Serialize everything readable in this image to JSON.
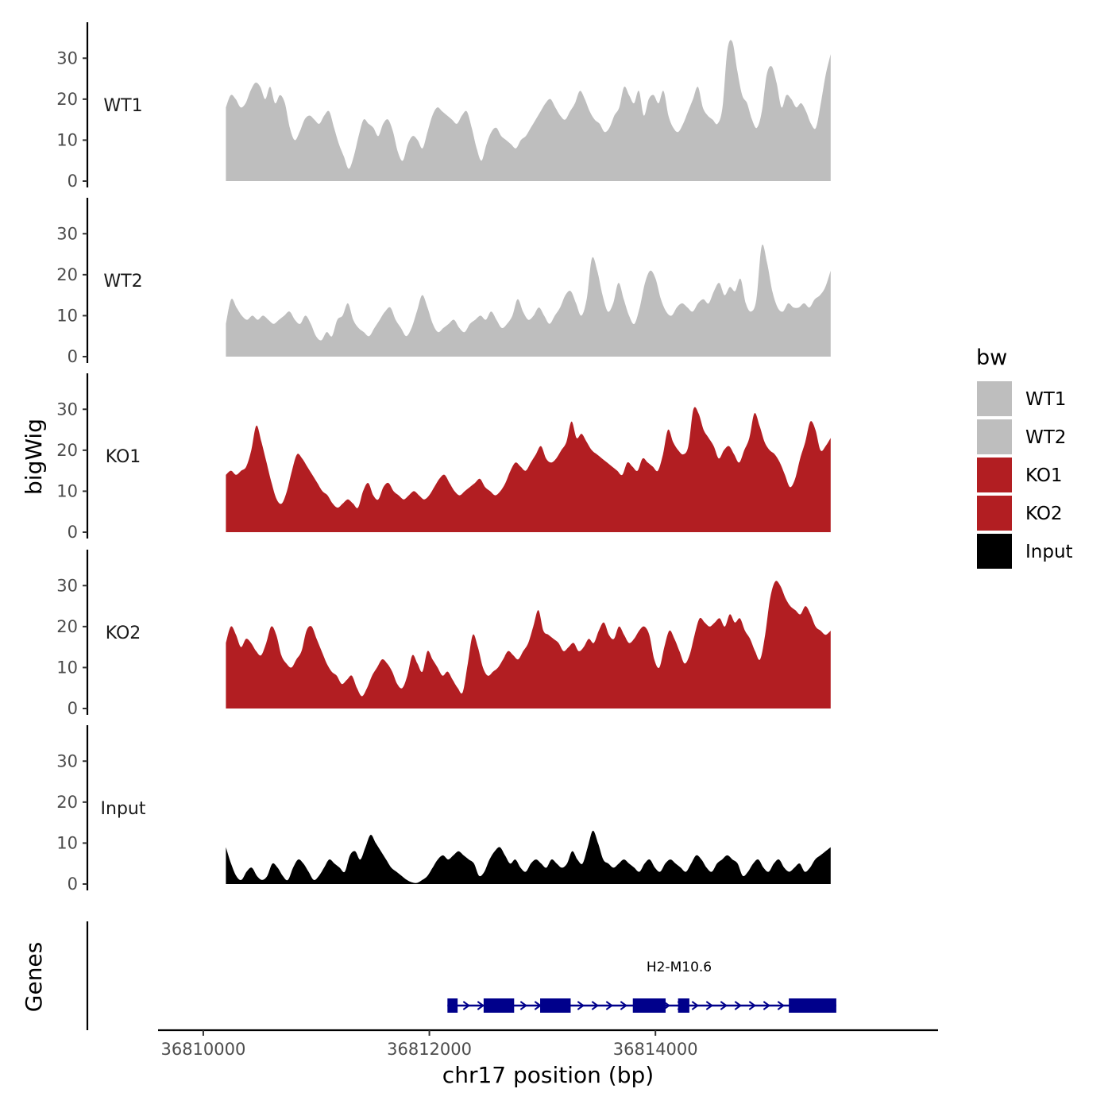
{
  "chart_data": {
    "type": "area",
    "ylabel": "bigWig",
    "xlabel": "chr17 position (bp)",
    "genes_label": "Genes",
    "xlim": [
      36809600,
      36816500
    ],
    "x_range": [
      36810200,
      36815550
    ],
    "ylim": [
      0,
      38
    ],
    "yticks": [
      0,
      10,
      20,
      30
    ],
    "xticks": [
      36810000,
      36812000,
      36814000
    ],
    "xtick_labels": [
      "36810000",
      "36812000",
      "36814000"
    ],
    "legend_title": "bw",
    "tracks": [
      {
        "name": "WT1",
        "color": "#bebebe",
        "values": [
          18,
          21,
          20,
          18,
          19,
          22,
          24,
          23,
          20,
          23,
          19,
          21,
          19,
          13,
          10,
          12,
          15,
          16,
          15,
          14,
          16,
          17,
          13,
          9,
          6,
          3,
          6,
          11,
          15,
          14,
          13,
          11,
          14,
          15,
          12,
          7,
          5,
          9,
          11,
          10,
          8,
          12,
          16,
          18,
          17,
          16,
          15,
          14,
          16,
          17,
          13,
          8,
          5,
          9,
          12,
          13,
          11,
          10,
          9,
          8,
          10,
          11,
          13,
          15,
          17,
          19,
          20,
          18,
          16,
          15,
          17,
          19,
          22,
          20,
          17,
          15,
          14,
          12,
          13,
          16,
          18,
          23,
          21,
          19,
          22,
          16,
          20,
          21,
          19,
          22,
          16,
          13,
          12,
          14,
          17,
          20,
          23,
          18,
          16,
          15,
          14,
          18,
          32,
          34,
          27,
          21,
          19,
          15,
          13,
          17,
          26,
          28,
          24,
          18,
          21,
          20,
          18,
          19,
          17,
          14,
          13,
          19,
          26,
          31
        ]
      },
      {
        "name": "WT2",
        "color": "#bebebe",
        "values": [
          8,
          14,
          12,
          10,
          9,
          10,
          9,
          10,
          9,
          8,
          9,
          10,
          11,
          9,
          8,
          10,
          8,
          5,
          4,
          6,
          5,
          9,
          10,
          13,
          9,
          7,
          6,
          5,
          7,
          9,
          11,
          12,
          9,
          7,
          5,
          7,
          11,
          15,
          12,
          8,
          6,
          7,
          8,
          9,
          7,
          6,
          8,
          9,
          10,
          9,
          11,
          9,
          7,
          8,
          10,
          14,
          11,
          9,
          10,
          12,
          10,
          8,
          10,
          12,
          15,
          16,
          13,
          10,
          14,
          24,
          21,
          15,
          11,
          13,
          18,
          14,
          10,
          8,
          12,
          18,
          21,
          19,
          14,
          11,
          10,
          12,
          13,
          12,
          11,
          13,
          14,
          13,
          16,
          18,
          15,
          17,
          16,
          19,
          13,
          11,
          14,
          27,
          23,
          16,
          12,
          11,
          13,
          12,
          12,
          13,
          12,
          14,
          15,
          17,
          21
        ]
      },
      {
        "name": "KO1",
        "color": "#b21e22",
        "values": [
          14,
          15,
          14,
          15,
          16,
          20,
          26,
          22,
          17,
          12,
          8,
          7,
          10,
          15,
          19,
          18,
          16,
          14,
          12,
          10,
          9,
          7,
          6,
          7,
          8,
          7,
          6,
          10,
          12,
          9,
          8,
          11,
          12,
          10,
          9,
          8,
          9,
          10,
          9,
          8,
          9,
          11,
          13,
          14,
          12,
          10,
          9,
          10,
          11,
          12,
          13,
          11,
          10,
          9,
          10,
          12,
          15,
          17,
          16,
          15,
          17,
          19,
          21,
          18,
          17,
          18,
          20,
          22,
          27,
          23,
          24,
          22,
          20,
          19,
          18,
          17,
          16,
          15,
          14,
          17,
          16,
          15,
          18,
          17,
          16,
          15,
          19,
          25,
          22,
          20,
          19,
          21,
          30,
          29,
          25,
          23,
          21,
          18,
          20,
          21,
          19,
          17,
          20,
          23,
          29,
          26,
          22,
          20,
          19,
          17,
          14,
          11,
          13,
          18,
          22,
          27,
          25,
          20,
          21,
          23
        ]
      },
      {
        "name": "KO2",
        "color": "#b21e22",
        "values": [
          16,
          20,
          18,
          15,
          17,
          16,
          14,
          13,
          16,
          20,
          18,
          13,
          11,
          10,
          12,
          14,
          19,
          20,
          17,
          14,
          11,
          9,
          8,
          6,
          7,
          8,
          5,
          3,
          5,
          8,
          10,
          12,
          11,
          9,
          6,
          5,
          8,
          13,
          11,
          9,
          14,
          12,
          10,
          8,
          9,
          7,
          5,
          4,
          11,
          18,
          15,
          10,
          8,
          9,
          10,
          12,
          14,
          13,
          12,
          14,
          16,
          20,
          24,
          19,
          18,
          17,
          16,
          14,
          15,
          16,
          14,
          15,
          17,
          16,
          19,
          21,
          18,
          17,
          20,
          18,
          16,
          17,
          19,
          20,
          18,
          12,
          10,
          15,
          19,
          17,
          14,
          11,
          13,
          18,
          22,
          21,
          20,
          21,
          22,
          20,
          23,
          21,
          22,
          19,
          17,
          14,
          12,
          18,
          27,
          31,
          30,
          27,
          25,
          24,
          23,
          25,
          23,
          20,
          19,
          18,
          19
        ]
      },
      {
        "name": "Input",
        "color": "#000000",
        "values": [
          9,
          5,
          2,
          1,
          3,
          4,
          2,
          1,
          2,
          5,
          4,
          2,
          1,
          4,
          6,
          5,
          3,
          1,
          2,
          4,
          6,
          5,
          4,
          3,
          7,
          8,
          6,
          9,
          12,
          10,
          8,
          6,
          4,
          3,
          2,
          1,
          0.4,
          0.3,
          1,
          2,
          4,
          6,
          7,
          6,
          7,
          8,
          7,
          6,
          5,
          2,
          3,
          6,
          8,
          9,
          7,
          5,
          6,
          4,
          3,
          5,
          6,
          5,
          4,
          6,
          5,
          4,
          5,
          8,
          6,
          5,
          9,
          13,
          10,
          6,
          5,
          4,
          5,
          6,
          5,
          4,
          3,
          5,
          6,
          4,
          3,
          5,
          6,
          5,
          4,
          3,
          5,
          7,
          6,
          4,
          3,
          5,
          6,
          7,
          6,
          5,
          2,
          3,
          5,
          6,
          4,
          3,
          5,
          6,
          4,
          3,
          4,
          5,
          3,
          4,
          6,
          7,
          8,
          9
        ]
      }
    ],
    "legend": [
      {
        "label": "WT1",
        "color": "#bebebe"
      },
      {
        "label": "WT2",
        "color": "#bebebe"
      },
      {
        "label": "KO1",
        "color": "#b21e22"
      },
      {
        "label": "KO2",
        "color": "#b21e22"
      },
      {
        "label": "Input",
        "color": "#000000"
      }
    ],
    "gene": {
      "name": "H2-M10.6",
      "color": "#00008b",
      "strand": "+",
      "start": 36812160,
      "end": 36815600,
      "exons": [
        [
          36812160,
          36812250
        ],
        [
          36812480,
          36812750
        ],
        [
          36812980,
          36813250
        ],
        [
          36813800,
          36814090
        ],
        [
          36814200,
          36814300
        ],
        [
          36815180,
          36815600
        ]
      ]
    }
  }
}
